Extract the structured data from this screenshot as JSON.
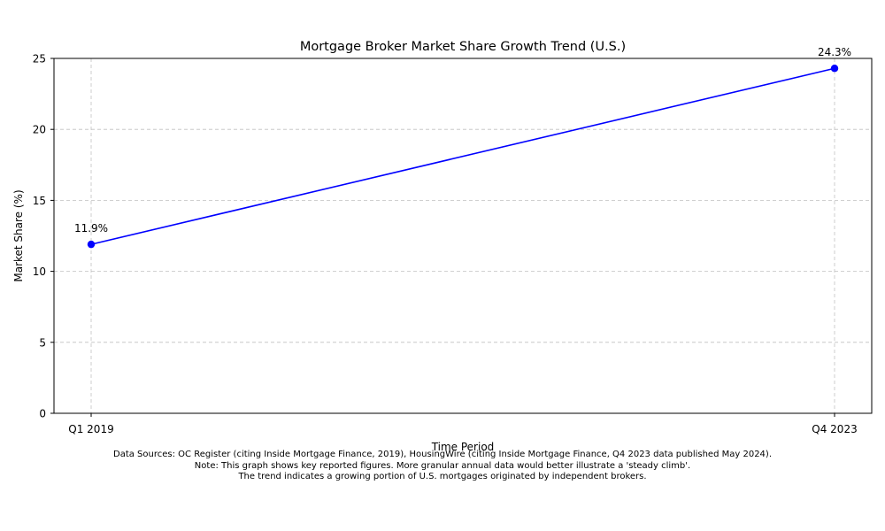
{
  "chart_data": {
    "type": "line",
    "title": "Mortgage Broker Market Share Growth Trend (U.S.)",
    "xlabel": "Time Period",
    "ylabel": "Market Share (%)",
    "categories": [
      "Q1 2019",
      "Q4 2023"
    ],
    "series": [
      {
        "values": [
          11.9,
          24.3
        ],
        "color": "#0000ff",
        "marker": "circle"
      }
    ],
    "data_labels": [
      "11.9%",
      "24.3%"
    ],
    "ylim": [
      0,
      25
    ],
    "yticks": [
      0,
      5,
      10,
      15,
      20,
      25
    ],
    "ytick_labels": [
      "0",
      "5",
      "10",
      "15",
      "20",
      "25"
    ],
    "grid": true,
    "grid_style": "dashed",
    "grid_color": "#c0c0c0"
  },
  "footnotes": [
    "Data Sources: OC Register (citing Inside Mortgage Finance, 2019), HousingWire (citing Inside Mortgage Finance, Q4 2023 data published May 2024).",
    "Note: This graph shows key reported figures. More granular annual data would better illustrate a 'steady climb'.",
    "The trend indicates a growing portion of U.S. mortgages originated by independent brokers."
  ]
}
